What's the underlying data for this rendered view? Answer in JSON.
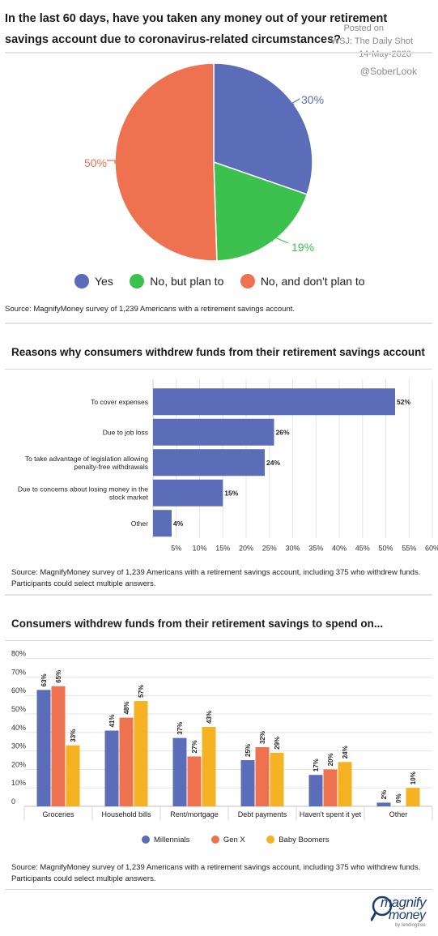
{
  "watermark": {
    "line1": "Posted on",
    "line2": "WSJ: The Daily Shot",
    "line3": "14-May-2020",
    "handle": "@SoberLook"
  },
  "colors": {
    "blue": "#5b6cb8",
    "green": "#3cc14e",
    "orange": "#ee7150",
    "yellow": "#f5b323",
    "axis_text": "#333333"
  },
  "chart_data": [
    {
      "type": "pie",
      "title": "In the last 60 days, have you taken any money out of your retirement savings account due to coronavirus-related circumstances?",
      "categories": [
        "Yes",
        "No, but plan to",
        "No, and don't plan to"
      ],
      "values": [
        30,
        19,
        50
      ],
      "value_labels": [
        "30%",
        "19%",
        "50%"
      ],
      "colors": [
        "#5b6cb8",
        "#3cc14e",
        "#ee7150"
      ],
      "legend": "bottom",
      "source": "Source: MagnifyMoney survey of 1,239 Americans with a retirement savings account."
    },
    {
      "type": "bar",
      "orientation": "horizontal",
      "title": "Reasons why consumers withdrew funds from their retirement savings account",
      "categories": [
        [
          "To cover expenses"
        ],
        [
          "Due to job loss"
        ],
        [
          "To take advantage of legislation allowing",
          "penalty-free withdrawals"
        ],
        [
          "Due to concerns about losing money in the",
          "stock market"
        ],
        [
          "Other"
        ]
      ],
      "values": [
        52,
        26,
        24,
        15,
        4
      ],
      "value_labels": [
        "52%",
        "26%",
        "24%",
        "15%",
        "4%"
      ],
      "xlim": [
        0,
        62
      ],
      "xticks": [
        5,
        10,
        15,
        20,
        25,
        30,
        35,
        40,
        45,
        50,
        55,
        60
      ],
      "xtick_labels": [
        "5%",
        "10%",
        "15%",
        "20%",
        "25%",
        "30%",
        "35%",
        "40%",
        "45%",
        "50%",
        "55%",
        "60%"
      ],
      "grid": true,
      "source": [
        "Source: MagnifyMoney survey of 1,239 Americans with a retirement savings account, including 375 who withdrew funds.",
        "Participants could select multiple answers."
      ]
    },
    {
      "type": "bar",
      "orientation": "vertical",
      "title": "Consumers withdrew funds from their retirement savings to spend on...",
      "categories": [
        "Groceries",
        "Household bills",
        "Rent/mortgage",
        "Debt payments",
        "Haven't spent it yet",
        "Other"
      ],
      "series": [
        {
          "name": "Millennials",
          "values": [
            63,
            41,
            37,
            25,
            17,
            2
          ],
          "labels": [
            "63%",
            "41%",
            "37%",
            "25%",
            "17%",
            "2%"
          ],
          "color": "#5b6cb8"
        },
        {
          "name": "Gen X",
          "values": [
            65,
            48,
            27,
            32,
            20,
            0
          ],
          "labels": [
            "65%",
            "48%",
            "27%",
            "32%",
            "20%",
            "0%"
          ],
          "color": "#ee7150"
        },
        {
          "name": "Baby Boomers",
          "values": [
            33,
            57,
            43,
            29,
            24,
            10
          ],
          "labels": [
            "33%",
            "57%",
            "43%",
            "29%",
            "24%",
            "10%"
          ],
          "color": "#f5b323"
        }
      ],
      "ylim": [
        0,
        80
      ],
      "yticks": [
        0,
        10,
        20,
        30,
        40,
        50,
        60,
        70,
        80
      ],
      "ytick_labels": [
        "0",
        "10%",
        "20%",
        "30%",
        "40%",
        "50%",
        "60%",
        "70%",
        "80%"
      ],
      "grid": true,
      "legend": "bottom",
      "source": [
        "Source: MagnifyMoney survey of 1,239 Americans with a retirement savings account, including 375 who withdrew funds.",
        "Participants could select multiple answers."
      ]
    }
  ],
  "logo": {
    "line1": "magnify",
    "line2": "money",
    "byline": "by lendingtree"
  }
}
